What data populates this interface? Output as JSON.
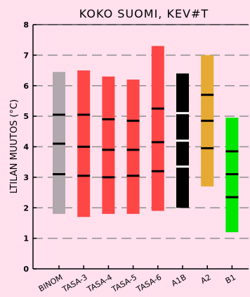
{
  "chart_data": {
    "type": "bar",
    "title": "KOKO SUOMI, KEV#T",
    "ylabel": "LTILAN MUUTOS (°C)",
    "xlabel": "",
    "ylim": [
      0,
      8
    ],
    "yticks": [
      0,
      1,
      2,
      3,
      4,
      5,
      6,
      7,
      8
    ],
    "grid": "dashed horizontal",
    "categories": [
      "BINOM",
      "TASA-3",
      "TASA-4",
      "TASA-5",
      "TASA-6",
      "A1B",
      "A2",
      "B1"
    ],
    "bars": [
      {
        "category": "BINOM",
        "low": 1.8,
        "high": 6.45,
        "marks": [
          3.1,
          4.1,
          5.05
        ],
        "color": "#b0a8ac",
        "mark_color": "#000000"
      },
      {
        "category": "TASA-3",
        "low": 1.7,
        "high": 6.5,
        "marks": [
          3.05,
          4.0,
          5.05
        ],
        "color": "#ff4646",
        "mark_color": "#000000"
      },
      {
        "category": "TASA-4",
        "low": 1.8,
        "high": 6.3,
        "marks": [
          3.0,
          3.9,
          4.9
        ],
        "color": "#ff4646",
        "mark_color": "#000000"
      },
      {
        "category": "TASA-5",
        "low": 1.8,
        "high": 6.2,
        "marks": [
          3.05,
          3.9,
          4.85
        ],
        "color": "#ff4646",
        "mark_color": "#000000"
      },
      {
        "category": "TASA-6",
        "low": 1.9,
        "high": 7.3,
        "marks": [
          3.2,
          4.15,
          5.25
        ],
        "color": "#ff4646",
        "mark_color": "#000000"
      },
      {
        "category": "A1B",
        "low": 2.0,
        "high": 6.4,
        "marks": [
          3.35,
          4.2,
          5.1
        ],
        "color": "#000000",
        "mark_color": "#ffffff"
      },
      {
        "category": "A2",
        "low": 2.7,
        "high": 7.0,
        "marks": [
          3.95,
          4.85,
          5.7
        ],
        "color": "#e6aa32",
        "mark_color": "#000000"
      },
      {
        "category": "B1",
        "low": 1.2,
        "high": 4.95,
        "marks": [
          2.35,
          3.1,
          3.85
        ],
        "color": "#00e600",
        "mark_color": "#000000"
      }
    ]
  }
}
